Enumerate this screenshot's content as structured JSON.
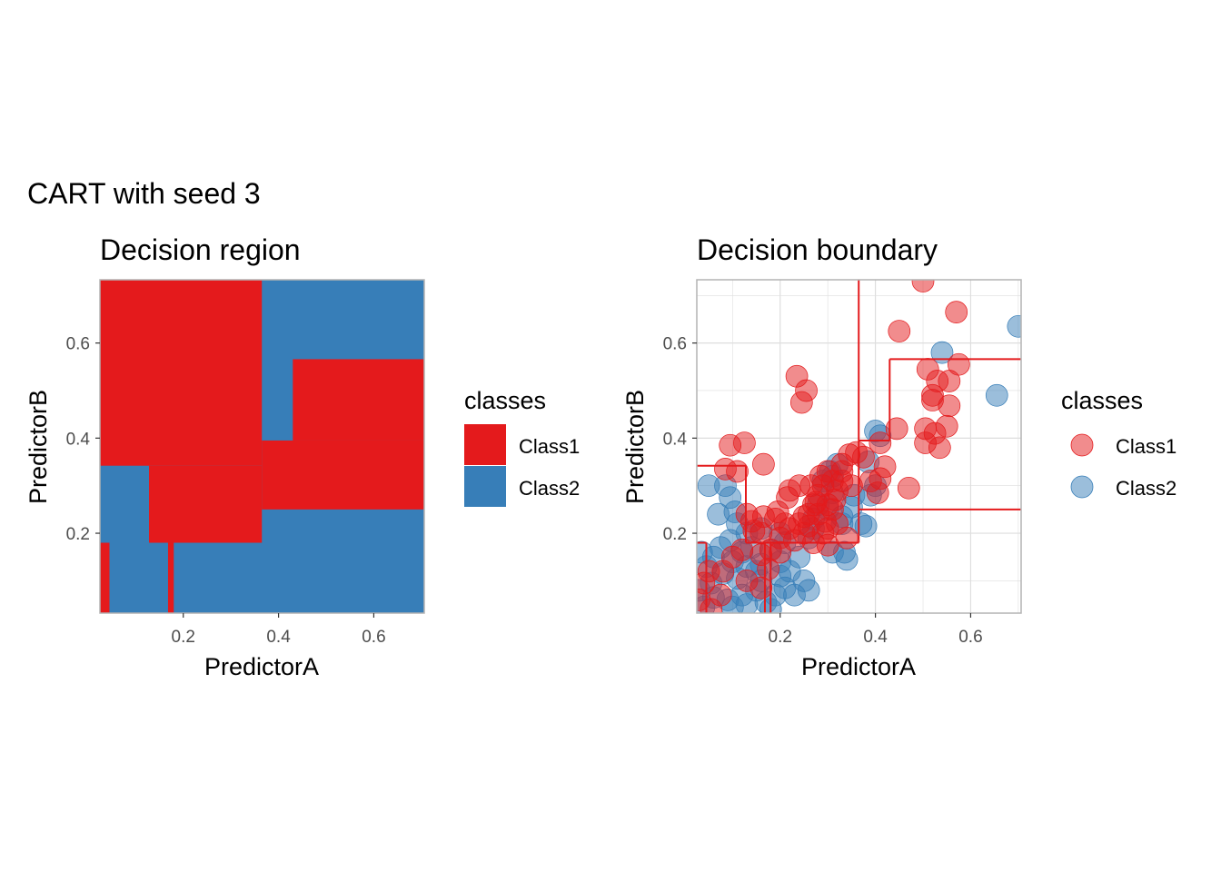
{
  "figure": {
    "title": "CART with seed 3"
  },
  "colors": {
    "class1": "#E41A1C",
    "class2": "#377EB8",
    "grid": "#DEDEDE",
    "panel_border": "#B3B3B3",
    "tick_text": "#4D4D4D",
    "title_text": "#1A1A1A"
  },
  "chart_data": [
    {
      "type": "heatmap",
      "title": "Decision region",
      "xlabel": "PredictorA",
      "ylabel": "PredictorB",
      "xlim": [
        0.025,
        0.706
      ],
      "ylim": [
        0.032,
        0.733
      ],
      "x_ticks": [
        "0.2",
        "0.4",
        "0.6"
      ],
      "y_ticks": [
        "0.2",
        "0.4",
        "0.6"
      ],
      "legend": {
        "title": "classes",
        "position": "right",
        "entries": [
          "Class1",
          "Class2"
        ]
      },
      "regions": [
        {
          "class": "Class2",
          "x": [
            0.025,
            0.706
          ],
          "y": [
            0.032,
            0.733
          ]
        },
        {
          "class": "Class1",
          "x": [
            0.025,
            0.365
          ],
          "y": [
            0.342,
            0.733
          ]
        },
        {
          "class": "Class1",
          "x": [
            0.128,
            0.365
          ],
          "y": [
            0.18,
            0.342
          ]
        },
        {
          "class": "Class1",
          "x": [
            0.365,
            0.706
          ],
          "y": [
            0.25,
            0.395
          ]
        },
        {
          "class": "Class1",
          "x": [
            0.43,
            0.706
          ],
          "y": [
            0.395,
            0.566
          ]
        },
        {
          "class": "Class1",
          "x": [
            0.025,
            0.045
          ],
          "y": [
            0.032,
            0.18
          ]
        },
        {
          "class": "Class1",
          "x": [
            0.168,
            0.18
          ],
          "y": [
            0.032,
            0.18
          ]
        }
      ]
    },
    {
      "type": "scatter",
      "title": "Decision boundary",
      "xlabel": "PredictorA",
      "ylabel": "PredictorB",
      "xlim": [
        0.025,
        0.706
      ],
      "ylim": [
        0.032,
        0.733
      ],
      "x_ticks": [
        "0.2",
        "0.4",
        "0.6"
      ],
      "y_ticks": [
        "0.2",
        "0.4",
        "0.6"
      ],
      "grid": true,
      "legend": {
        "title": "classes",
        "position": "right",
        "entries": [
          "Class1",
          "Class2"
        ]
      },
      "boundary_segments": [
        [
          [
            0.365,
            0.733
          ],
          [
            0.365,
            0.395
          ]
        ],
        [
          [
            0.365,
            0.395
          ],
          [
            0.43,
            0.395
          ]
        ],
        [
          [
            0.43,
            0.395
          ],
          [
            0.43,
            0.566
          ]
        ],
        [
          [
            0.43,
            0.566
          ],
          [
            0.706,
            0.566
          ]
        ],
        [
          [
            0.365,
            0.395
          ],
          [
            0.365,
            0.25
          ]
        ],
        [
          [
            0.365,
            0.25
          ],
          [
            0.706,
            0.25
          ]
        ],
        [
          [
            0.365,
            0.25
          ],
          [
            0.365,
            0.18
          ]
        ],
        [
          [
            0.365,
            0.18
          ],
          [
            0.128,
            0.18
          ]
        ],
        [
          [
            0.128,
            0.18
          ],
          [
            0.128,
            0.342
          ]
        ],
        [
          [
            0.128,
            0.342
          ],
          [
            0.025,
            0.342
          ]
        ],
        [
          [
            0.025,
            0.18
          ],
          [
            0.045,
            0.18
          ]
        ],
        [
          [
            0.045,
            0.18
          ],
          [
            0.045,
            0.032
          ]
        ],
        [
          [
            0.168,
            0.032
          ],
          [
            0.168,
            0.18
          ]
        ],
        [
          [
            0.18,
            0.032
          ],
          [
            0.18,
            0.18
          ]
        ]
      ],
      "series": [
        {
          "name": "Class1",
          "points": [
            [
              0.5,
              0.73
            ],
            [
              0.57,
              0.665
            ],
            [
              0.45,
              0.625
            ],
            [
              0.51,
              0.545
            ],
            [
              0.575,
              0.555
            ],
            [
              0.53,
              0.52
            ],
            [
              0.555,
              0.52
            ],
            [
              0.52,
              0.48
            ],
            [
              0.555,
              0.468
            ],
            [
              0.52,
              0.49
            ],
            [
              0.235,
              0.53
            ],
            [
              0.255,
              0.5
            ],
            [
              0.245,
              0.475
            ],
            [
              0.505,
              0.42
            ],
            [
              0.525,
              0.41
            ],
            [
              0.55,
              0.425
            ],
            [
              0.505,
              0.39
            ],
            [
              0.535,
              0.38
            ],
            [
              0.445,
              0.42
            ],
            [
              0.41,
              0.39
            ],
            [
              0.42,
              0.34
            ],
            [
              0.41,
              0.315
            ],
            [
              0.47,
              0.295
            ],
            [
              0.375,
              0.36
            ],
            [
              0.345,
              0.365
            ],
            [
              0.33,
              0.345
            ],
            [
              0.095,
              0.385
            ],
            [
              0.125,
              0.39
            ],
            [
              0.085,
              0.335
            ],
            [
              0.11,
              0.33
            ],
            [
              0.165,
              0.345
            ],
            [
              0.3,
              0.33
            ],
            [
              0.31,
              0.31
            ],
            [
              0.29,
              0.3
            ],
            [
              0.28,
              0.28
            ],
            [
              0.32,
              0.29
            ],
            [
              0.33,
              0.31
            ],
            [
              0.27,
              0.26
            ],
            [
              0.26,
              0.24
            ],
            [
              0.3,
              0.26
            ],
            [
              0.24,
              0.22
            ],
            [
              0.25,
              0.2
            ],
            [
              0.22,
              0.21
            ],
            [
              0.21,
              0.22
            ],
            [
              0.19,
              0.23
            ],
            [
              0.14,
              0.225
            ],
            [
              0.145,
              0.205
            ],
            [
              0.16,
              0.2
            ],
            [
              0.2,
              0.19
            ],
            [
              0.23,
              0.185
            ],
            [
              0.27,
              0.18
            ],
            [
              0.3,
              0.175
            ],
            [
              0.18,
              0.165
            ],
            [
              0.16,
              0.155
            ],
            [
              0.2,
              0.16
            ],
            [
              0.12,
              0.165
            ],
            [
              0.1,
              0.15
            ],
            [
              0.08,
              0.12
            ],
            [
              0.05,
              0.12
            ],
            [
              0.04,
              0.095
            ],
            [
              0.075,
              0.07
            ],
            [
              0.03,
              0.06
            ],
            [
              0.055,
              0.04
            ],
            [
              0.13,
              0.1
            ],
            [
              0.175,
              0.125
            ],
            [
              0.16,
              0.085
            ],
            [
              0.25,
              0.235
            ],
            [
              0.28,
              0.24
            ],
            [
              0.33,
              0.33
            ],
            [
              0.285,
              0.32
            ],
            [
              0.315,
              0.27
            ],
            [
              0.265,
              0.3
            ],
            [
              0.36,
              0.37
            ],
            [
              0.24,
              0.3
            ],
            [
              0.22,
              0.29
            ],
            [
              0.195,
              0.245
            ],
            [
              0.39,
              0.31
            ],
            [
              0.405,
              0.285
            ],
            [
              0.35,
              0.3
            ],
            [
              0.29,
              0.2
            ],
            [
              0.3,
              0.21
            ],
            [
              0.26,
              0.215
            ],
            [
              0.31,
              0.25
            ],
            [
              0.275,
              0.265
            ],
            [
              0.34,
              0.19
            ],
            [
              0.13,
              0.24
            ],
            [
              0.165,
              0.235
            ],
            [
              0.215,
              0.275
            ],
            [
              0.295,
              0.225
            ],
            [
              0.32,
              0.22
            ]
          ]
        },
        {
          "name": "Class2",
          "points": [
            [
              0.7,
              0.635
            ],
            [
              0.54,
              0.58
            ],
            [
              0.655,
              0.49
            ],
            [
              0.4,
              0.415
            ],
            [
              0.41,
              0.405
            ],
            [
              0.385,
              0.35
            ],
            [
              0.305,
              0.33
            ],
            [
              0.31,
              0.32
            ],
            [
              0.4,
              0.3
            ],
            [
              0.39,
              0.28
            ],
            [
              0.35,
              0.255
            ],
            [
              0.37,
              0.22
            ],
            [
              0.38,
              0.215
            ],
            [
              0.33,
              0.22
            ],
            [
              0.3,
              0.25
            ],
            [
              0.28,
              0.26
            ],
            [
              0.27,
              0.21
            ],
            [
              0.26,
              0.19
            ],
            [
              0.05,
              0.3
            ],
            [
              0.085,
              0.3
            ],
            [
              0.095,
              0.275
            ],
            [
              0.07,
              0.24
            ],
            [
              0.105,
              0.245
            ],
            [
              0.11,
              0.22
            ],
            [
              0.13,
              0.2
            ],
            [
              0.16,
              0.21
            ],
            [
              0.2,
              0.2
            ],
            [
              0.21,
              0.18
            ],
            [
              0.18,
              0.165
            ],
            [
              0.14,
              0.17
            ],
            [
              0.12,
              0.16
            ],
            [
              0.1,
              0.14
            ],
            [
              0.06,
              0.15
            ],
            [
              0.045,
              0.13
            ],
            [
              0.08,
              0.115
            ],
            [
              0.11,
              0.105
            ],
            [
              0.15,
              0.12
            ],
            [
              0.16,
              0.1
            ],
            [
              0.2,
              0.11
            ],
            [
              0.22,
              0.12
            ],
            [
              0.25,
              0.1
            ],
            [
              0.26,
              0.08
            ],
            [
              0.15,
              0.08
            ],
            [
              0.12,
              0.07
            ],
            [
              0.09,
              0.06
            ],
            [
              0.06,
              0.065
            ],
            [
              0.04,
              0.045
            ],
            [
              0.03,
              0.08
            ],
            [
              0.1,
              0.045
            ],
            [
              0.13,
              0.05
            ],
            [
              0.17,
              0.055
            ],
            [
              0.19,
              0.07
            ],
            [
              0.21,
              0.085
            ],
            [
              0.23,
              0.07
            ],
            [
              0.18,
              0.04
            ],
            [
              0.055,
              0.095
            ],
            [
              0.075,
              0.17
            ],
            [
              0.095,
              0.185
            ],
            [
              0.035,
              0.16
            ],
            [
              0.34,
              0.145
            ],
            [
              0.335,
              0.16
            ],
            [
              0.31,
              0.16
            ],
            [
              0.2,
              0.14
            ],
            [
              0.16,
              0.135
            ],
            [
              0.13,
              0.13
            ],
            [
              0.33,
              0.235
            ],
            [
              0.355,
              0.28
            ],
            [
              0.31,
              0.285
            ],
            [
              0.29,
              0.31
            ],
            [
              0.32,
              0.345
            ],
            [
              0.27,
              0.23
            ],
            [
              0.24,
              0.15
            ]
          ]
        }
      ]
    }
  ]
}
